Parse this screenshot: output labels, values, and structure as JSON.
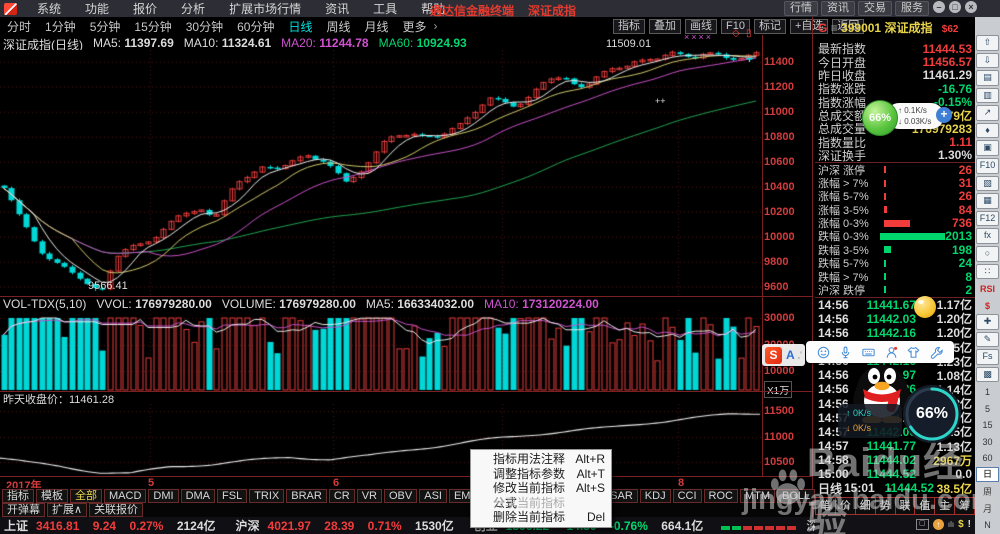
{
  "menubar": {
    "items": [
      "系统",
      "功能",
      "报价",
      "分析",
      "扩展市场行情",
      "资讯",
      "工具",
      "帮助"
    ],
    "center_title": "通达信金融终端",
    "center_symbol": "深证成指",
    "right_buttons": [
      "行情",
      "资讯",
      "交易",
      "服务"
    ],
    "window": {
      "min": "–",
      "restore": "□",
      "close": "×"
    }
  },
  "toolbar": {
    "periods": [
      {
        "label": "分时",
        "cls": ""
      },
      {
        "label": "1分钟",
        "cls": ""
      },
      {
        "label": "5分钟",
        "cls": ""
      },
      {
        "label": "15分钟",
        "cls": ""
      },
      {
        "label": "30分钟",
        "cls": ""
      },
      {
        "label": "60分钟",
        "cls": ""
      },
      {
        "label": "日线",
        "cls": "active"
      },
      {
        "label": "周线",
        "cls": ""
      },
      {
        "label": "月线",
        "cls": ""
      },
      {
        "label": "更多",
        "cls": ""
      }
    ],
    "more_arrow": "›",
    "buttons": [
      "指标",
      "叠加",
      "画线",
      "F10",
      "标记",
      "+自选",
      "返回"
    ],
    "symbol": {
      "prefix": "G",
      "menu": "≡",
      "code": "399001",
      "name": "深证成指",
      "tag": "$62"
    },
    "back_arrow": "⇦"
  },
  "chart_header": {
    "title": "深证成指(日线)",
    "ma": [
      {
        "label": "MA5:",
        "value": "11397.69",
        "cls": "c-white"
      },
      {
        "label": "MA10:",
        "value": "11324.61",
        "cls": "c-white"
      },
      {
        "label": "MA20:",
        "value": "11244.78",
        "cls": "c-magenta"
      },
      {
        "label": "MA60:",
        "value": "10924.93",
        "cls": "c-green"
      }
    ]
  },
  "main_chart": {
    "y_ticks": [
      "11400",
      "11200",
      "11000",
      "10800",
      "10600",
      "10400",
      "10200",
      "10000",
      "9800",
      "9600"
    ],
    "peak_label": "11509.01",
    "low_label": "9566.41",
    "peak_marks": "××××",
    "diamond": "◇",
    "candle_icon": "▯",
    "cross": "+",
    "plus_marks": "++"
  },
  "vol_header": {
    "name": "VOL-TDX(5,10)",
    "items": [
      {
        "label": "VVOL:",
        "value": "176979280.00",
        "cls": "c-white"
      },
      {
        "label": "VOLUME:",
        "value": "176979280.00",
        "cls": "c-white"
      },
      {
        "label": "MA5:",
        "value": "166334032.00",
        "cls": "c-white"
      },
      {
        "label": "MA10:",
        "value": "173120224.00",
        "cls": "c-magenta"
      }
    ]
  },
  "vol_chart": {
    "y_ticks": [
      "30000",
      "20000",
      "10000"
    ],
    "unit": "X1万"
  },
  "panel3": {
    "label": "昨天收盘价：11461.28",
    "y_ticks": [
      "11500",
      "11000",
      "10500"
    ]
  },
  "date_axis": {
    "year": "2017年",
    "months": [
      "5",
      "6",
      "7",
      "8"
    ]
  },
  "indicator_bar": {
    "tabs": [
      "指标",
      "模板"
    ],
    "filter": "全部",
    "indicators": [
      "MACD",
      "DMI",
      "DMA",
      "FSL",
      "TRIX",
      "BRAR",
      "CR",
      "VR",
      "OBV",
      "ASI",
      "EMV",
      "VOL-TDX",
      "RSI",
      "WR",
      "SAR",
      "KDJ",
      "CCI",
      "ROC",
      "MTM",
      "BOLL"
    ],
    "row2": [
      "开弹幕",
      "扩展∧",
      "关联报价"
    ]
  },
  "status_bar": {
    "indices": [
      {
        "label": "上证",
        "value": "3416.81",
        "change": "9.24",
        "pct": "0.27%",
        "amount": "2124亿",
        "cls": "c-red"
      },
      {
        "label": "沪深",
        "value": "4021.97",
        "change": "28.39",
        "pct": "0.71%",
        "amount": "1530亿",
        "cls": "c-red"
      },
      {
        "label": "创业",
        "value": "1896.22",
        "change": "-14.50",
        "pct": "-0.76%",
        "amount": "664.1亿",
        "cls": "c-green"
      }
    ],
    "server": "深圳行情主站1"
  },
  "quote_panel": {
    "rows": [
      {
        "label": "最新指数",
        "value": "11444.53",
        "cls": "c-red"
      },
      {
        "label": "今日开盘",
        "value": "11456.57",
        "cls": "c-red"
      },
      {
        "label": "昨日收盘",
        "value": "11461.29",
        "cls": "c-white"
      },
      {
        "label": "指数涨跌",
        "value": "-16.76",
        "cls": "c-green"
      },
      {
        "label": "指数涨幅",
        "value": "-0.15%",
        "cls": "c-green"
      },
      {
        "label": "总成交额",
        "value": "79亿",
        "cls": "c-yellow"
      },
      {
        "label": "总成交量",
        "value": "176979283",
        "cls": "c-yellow"
      },
      {
        "label": "指数量比",
        "value": "1.11",
        "cls": "c-red"
      },
      {
        "label": "深证换手",
        "value": "1.30%",
        "cls": "c-white"
      }
    ],
    "updown": [
      {
        "label": "沪深 涨停",
        "value": "26",
        "cls": "c-red"
      },
      {
        "label": "涨幅 > 7%",
        "value": "31",
        "cls": "c-red"
      },
      {
        "label": "涨幅 5-7%",
        "value": "26",
        "cls": "c-red"
      },
      {
        "label": "涨幅 3-5%",
        "value": "84",
        "cls": "c-red"
      },
      {
        "label": "涨幅 0-3%",
        "value": "736",
        "cls": "c-red"
      },
      {
        "label": "跌幅 0-3%",
        "value": "2013",
        "cls": "c-green"
      },
      {
        "label": "跌幅 3-5%",
        "value": "198",
        "cls": "c-green"
      },
      {
        "label": "跌幅 5-7%",
        "value": "24",
        "cls": "c-green"
      },
      {
        "label": "跌幅 > 7%",
        "value": "8",
        "cls": "c-green"
      },
      {
        "label": "沪深 跌停",
        "value": "2",
        "cls": "c-green"
      }
    ],
    "ticks": [
      {
        "t": "14:56",
        "p": "11441.67",
        "a": "1.17亿",
        "ac": "c-white"
      },
      {
        "t": "14:56",
        "p": "11442.03",
        "a": "1.20亿",
        "ac": "c-white"
      },
      {
        "t": "14:56",
        "p": "11442.16",
        "a": "1.20亿",
        "ac": "c-white"
      },
      {
        "t": "14:56",
        "p": "11442.20",
        "a": "1.15亿",
        "ac": "c-white"
      },
      {
        "t": "14:56",
        "p": "11442.16",
        "a": "1.23亿",
        "ac": "c-white"
      },
      {
        "t": "14:56",
        "p": "11441.97",
        "a": "1.08亿",
        "ac": "c-white"
      },
      {
        "t": "14:56",
        "p": "11442.26",
        "a": "1.14亿",
        "ac": "c-white"
      },
      {
        "t": "14:56",
        "p": "11442.08",
        "a": "1.08亿",
        "ac": "c-white"
      },
      {
        "t": "14:57",
        "p": "11442.24",
        "a": "1.24亿",
        "ac": "c-white"
      },
      {
        "t": "14:57",
        "p": "11442.00",
        "a": "1.25亿",
        "ac": "c-white"
      },
      {
        "t": "14:57",
        "p": "11441.77",
        "a": "1.13亿",
        "ac": "c-white"
      },
      {
        "t": "14:58",
        "p": "11444.02",
        "a": "2967万",
        "ac": "c-yellow"
      },
      {
        "t": "15:00",
        "p": "11444.52",
        "a": "0.0",
        "ac": "c-white"
      }
    ],
    "summary": {
      "period": "日线",
      "time": "15:01",
      "price": "11444.52",
      "amount": "38.5亿"
    },
    "mini_tabs": [
      "笔",
      "价",
      "细",
      "势",
      "联",
      "值",
      "主",
      "筹"
    ]
  },
  "context_menu": [
    {
      "label": "指标用法注释",
      "shortcut": "Alt+R",
      "cls": ""
    },
    {
      "label": "调整指标参数",
      "shortcut": "Alt+T",
      "cls": ""
    },
    {
      "label": "修改当前指标公式",
      "shortcut": "Alt+S",
      "cls": ""
    },
    {
      "label": "分享当前指标",
      "shortcut": "",
      "cls": "disabled"
    },
    {
      "label": "删除当前指标",
      "shortcut": "Del",
      "cls": ""
    }
  ],
  "overlays": {
    "speed_ball": "66%",
    "speed_up": "↑ 0.1K/s",
    "speed_down": "↓ 0.03K/s",
    "plus": "+",
    "net_up": "↑  0K/s",
    "net_down": "↓  0K/s",
    "progress_ball": "66%",
    "watermark_title": "Baidu经验",
    "watermark_url": "jingyan.baidu.com",
    "sogou": "S",
    "sogou_mode": "A"
  },
  "right_strip": [
    {
      "label": "⇧",
      "cls": "s-ico"
    },
    {
      "label": "⇩",
      "cls": "s-ico"
    },
    {
      "label": "▤",
      "cls": "s-ico"
    },
    {
      "label": "▥",
      "cls": "s-ico"
    },
    {
      "label": "↗",
      "cls": "s-ico"
    },
    {
      "label": "♦",
      "cls": "s-ico"
    },
    {
      "label": "▣",
      "cls": "s-ico"
    },
    {
      "label": "F10",
      "cls": "s-ico"
    },
    {
      "label": "▧",
      "cls": "s-ico"
    },
    {
      "label": "▦",
      "cls": "s-ico"
    },
    {
      "label": "F12",
      "cls": "s-ico"
    },
    {
      "label": "fx",
      "cls": "s-ico"
    },
    {
      "label": "○",
      "cls": "s-ico"
    },
    {
      "label": "∷",
      "cls": "s-ico"
    },
    {
      "label": "RSI",
      "cls": "s-red"
    },
    {
      "label": "$",
      "cls": "s-red"
    },
    {
      "label": "✚",
      "cls": "s-ico"
    },
    {
      "label": "✎",
      "cls": "s-ico"
    },
    {
      "label": "Fs",
      "cls": "s-ico"
    },
    {
      "label": "▩",
      "cls": "s-ico"
    },
    {
      "label": "1",
      "cls": "s-txt"
    },
    {
      "label": "5",
      "cls": "s-txt"
    },
    {
      "label": "15",
      "cls": "s-txt"
    },
    {
      "label": "30",
      "cls": "s-txt"
    },
    {
      "label": "60",
      "cls": "s-txt"
    },
    {
      "label": "日",
      "cls": "s-sel"
    },
    {
      "label": "周",
      "cls": "s-txt"
    },
    {
      "label": "月",
      "cls": "s-txt"
    },
    {
      "label": "N",
      "cls": "s-txt"
    }
  ],
  "bottom_icons": [
    "▢",
    "↑",
    "ılı",
    "$",
    "!"
  ]
}
